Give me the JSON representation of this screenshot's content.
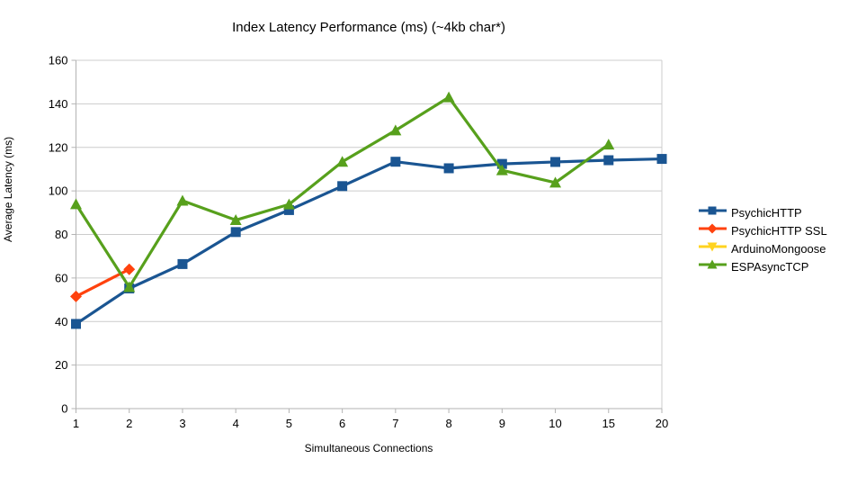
{
  "chart_data": {
    "type": "line",
    "title": "Index Latency Performance (ms) (~4kb char*)",
    "xlabel": "Simultaneous Connections",
    "ylabel": "Average Latency (ms)",
    "categories": [
      "1",
      "2",
      "3",
      "4",
      "5",
      "6",
      "7",
      "8",
      "9",
      "10",
      "15",
      "20"
    ],
    "ylim": [
      0,
      160
    ],
    "ytick_step": 20,
    "grid": "horizontal",
    "legend_position": "right",
    "colors": {
      "background": "#ffffff",
      "grid": "#cccccc",
      "axis": "#b3b3b3",
      "text": "#000000"
    },
    "series": [
      {
        "name": "PsychicHTTP",
        "color": "#1a5592",
        "marker": "square",
        "values": [
          38.9,
          55.2,
          66.4,
          81.1,
          91.2,
          102.2,
          113.4,
          110.4,
          112.4,
          113.3,
          114.1,
          114.7
        ]
      },
      {
        "name": "PsychicHTTP SSL",
        "color": "#ff420e",
        "marker": "diamond",
        "values": [
          51.5,
          64.0,
          null,
          null,
          null,
          null,
          null,
          null,
          null,
          null,
          null,
          null
        ]
      },
      {
        "name": "ArduinoMongoose",
        "color": "#ffd320",
        "marker": "triangle-down",
        "values": [
          null,
          null,
          null,
          null,
          null,
          null,
          null,
          null,
          null,
          null,
          null,
          null
        ]
      },
      {
        "name": "ESPAsyncTCP",
        "color": "#57a01c",
        "marker": "triangle-up",
        "values": [
          93.9,
          55.8,
          95.5,
          86.6,
          93.8,
          113.4,
          127.8,
          143.0,
          109.5,
          103.8,
          121.3,
          null
        ]
      }
    ]
  }
}
